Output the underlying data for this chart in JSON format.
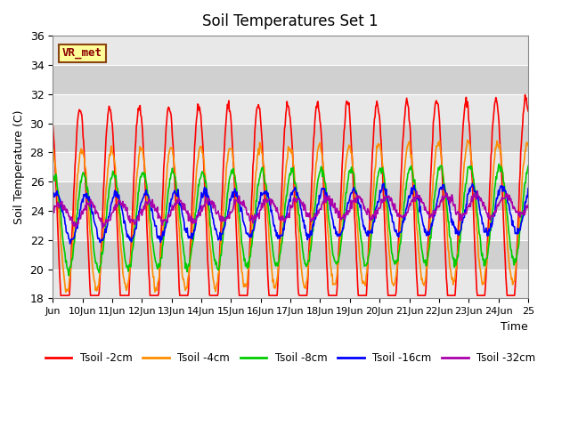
{
  "title": "Soil Temperatures Set 1",
  "xlabel": "Time",
  "ylabel": "Soil Temperature (C)",
  "ylim": [
    18,
    36
  ],
  "yticks": [
    18,
    20,
    22,
    24,
    26,
    28,
    30,
    32,
    34,
    36
  ],
  "colors": {
    "2cm": "#ff0000",
    "4cm": "#ff8c00",
    "8cm": "#00cc00",
    "16cm": "#0000ff",
    "32cm": "#aa00aa"
  },
  "legend_labels": [
    "Tsoil -2cm",
    "Tsoil -4cm",
    "Tsoil -8cm",
    "Tsoil -16cm",
    "Tsoil -32cm"
  ],
  "vr_met_label": "VR_met",
  "n_days": 16,
  "points_per_day": 48,
  "x_tick_positions": [
    0,
    1,
    2,
    3,
    4,
    5,
    6,
    7,
    8,
    9,
    10,
    11,
    12,
    13,
    14,
    15,
    16
  ],
  "x_tick_labels": [
    "Jun",
    "10Jun",
    "11Jun",
    "12Jun",
    "13Jun",
    "14Jun",
    "15Jun",
    "16Jun",
    "17Jun",
    "18Jun",
    "19Jun",
    "20Jun",
    "21Jun",
    "22Jun",
    "23Jun",
    "24Jun",
    "25"
  ],
  "band_color_light": "#e8e8e8",
  "band_color_dark": "#d0d0d0",
  "series_params": {
    "2cm": [
      8.0,
      0.0,
      0.0
    ],
    "4cm": [
      4.8,
      1.5,
      0.3
    ],
    "8cm": [
      3.3,
      3.0,
      0.2
    ],
    "16cm": [
      1.6,
      5.0,
      0.5
    ],
    "32cm": [
      0.7,
      8.0,
      0.8
    ]
  },
  "base_temp": 23.0,
  "base_trend_slope": 0.04
}
